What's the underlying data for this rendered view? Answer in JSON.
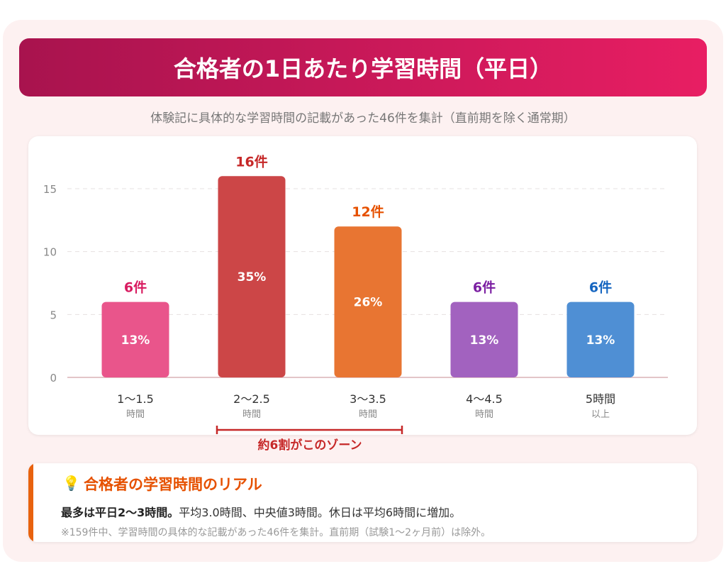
{
  "title": "合格者の1日あたり学習時間（平日）",
  "subtitle": "体験記に具体的な学習時間の記載があった46件を集計（直前期を除く通常期）",
  "chart_data": {
    "type": "bar",
    "categories": [
      [
        "1〜1.5",
        "時間"
      ],
      [
        "2〜2.5",
        "時間"
      ],
      [
        "3〜3.5",
        "時間"
      ],
      [
        "4〜4.5",
        "時間"
      ],
      [
        "5時間",
        "以上"
      ]
    ],
    "values": [
      6,
      16,
      12,
      6,
      6
    ],
    "count_labels": [
      "6件",
      "16件",
      "12件",
      "6件",
      "6件"
    ],
    "percent_labels": [
      "13%",
      "35%",
      "26%",
      "13%",
      "13%"
    ],
    "bar_colors": [
      "#e9558b",
      "#cc4647",
      "#e87532",
      "#a262bf",
      "#4f8fd4"
    ],
    "label_colors": [
      "#d81b60",
      "#c62828",
      "#e65100",
      "#7b1fa2",
      "#1565c0"
    ],
    "ylim": [
      0,
      16
    ],
    "yticks": [
      0,
      5,
      10,
      15
    ],
    "grid": true,
    "annotation": "約6割がこのゾーン"
  },
  "note": {
    "icon": "lightbulb-icon",
    "title": "合格者の学習時間のリアル",
    "body_bold": "最多は平日2〜3時間。",
    "body_rest": "平均3.0時間、中央値3時間。休日は平均6時間に増加。",
    "footnote": "※159件中、学習時間の具体的な記載があった46件を集計。直前期（試験1〜2ヶ月前）は除外。"
  }
}
